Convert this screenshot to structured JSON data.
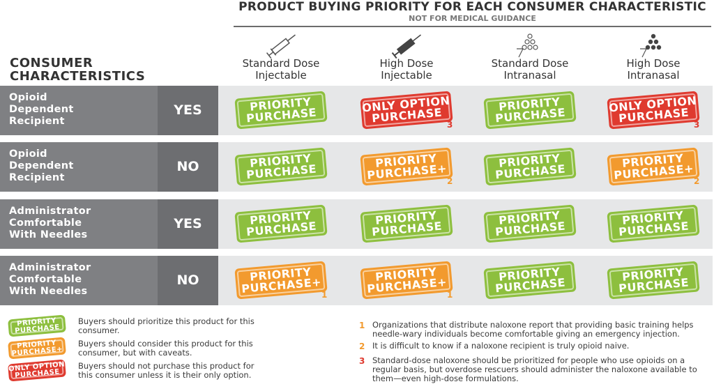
{
  "header": {
    "title": "PRODUCT BUYING PRIORITY FOR EACH CONSUMER CHARACTERISTIC",
    "subtitle": "NOT FOR MEDICAL GUIDANCE"
  },
  "table": {
    "corner": [
      "CONSUMER",
      "CHARACTERISTICS"
    ],
    "columns": [
      [
        "Standard Dose",
        "Injectable"
      ],
      [
        "High Dose",
        "Injectable"
      ],
      [
        "Standard Dose",
        "Intranasal"
      ],
      [
        "High Dose",
        "Intranasal"
      ]
    ],
    "rows": [
      {
        "label": [
          "Opioid",
          "Dependent",
          "Recipient"
        ],
        "answer": "YES",
        "cells": [
          {
            "stamp": [
              "PRIORITY",
              "PURCHASE"
            ],
            "color": "#8dbf3e"
          },
          {
            "stamp": [
              "ONLY OPTION",
              "PURCHASE"
            ],
            "color": "#df3a2f",
            "note": "3"
          },
          {
            "stamp": [
              "PRIORITY",
              "PURCHASE"
            ],
            "color": "#8dbf3e"
          },
          {
            "stamp": [
              "ONLY OPTION",
              "PURCHASE"
            ],
            "color": "#df3a2f",
            "note": "3"
          }
        ]
      },
      {
        "label": [
          "Opioid",
          "Dependent",
          "Recipient"
        ],
        "answer": "NO",
        "cells": [
          {
            "stamp": [
              "PRIORITY",
              "PURCHASE"
            ],
            "color": "#8dbf3e"
          },
          {
            "stamp": [
              "PRIORITY",
              "PURCHASE+"
            ],
            "color": "#f29a2e",
            "note": "2"
          },
          {
            "stamp": [
              "PRIORITY",
              "PURCHASE"
            ],
            "color": "#8dbf3e"
          },
          {
            "stamp": [
              "PRIORITY",
              "PURCHASE+"
            ],
            "color": "#f29a2e",
            "note": "2"
          }
        ]
      },
      {
        "label": [
          "Administrator",
          "Comfortable",
          "With Needles"
        ],
        "answer": "YES",
        "cells": [
          {
            "stamp": [
              "PRIORITY",
              "PURCHASE"
            ],
            "color": "#8dbf3e"
          },
          {
            "stamp": [
              "PRIORITY",
              "PURCHASE"
            ],
            "color": "#8dbf3e"
          },
          {
            "stamp": [
              "PRIORITY",
              "PURCHASE"
            ],
            "color": "#8dbf3e"
          },
          {
            "stamp": [
              "PRIORITY",
              "PURCHASE"
            ],
            "color": "#8dbf3e"
          }
        ]
      },
      {
        "label": [
          "Administrator",
          "Comfortable",
          "With Needles"
        ],
        "answer": "NO",
        "cells": [
          {
            "stamp": [
              "PRIORITY",
              "PURCHASE+"
            ],
            "color": "#f29a2e",
            "note": "1"
          },
          {
            "stamp": [
              "PRIORITY",
              "PURCHASE+"
            ],
            "color": "#f29a2e",
            "note": "1"
          },
          {
            "stamp": [
              "PRIORITY",
              "PURCHASE"
            ],
            "color": "#8dbf3e"
          },
          {
            "stamp": [
              "PRIORITY",
              "PURCHASE"
            ],
            "color": "#8dbf3e"
          }
        ]
      }
    ]
  },
  "legend": [
    {
      "stamp": [
        "PRIORITY",
        "PURCHASE"
      ],
      "color": "#8dbf3e",
      "text": "Buyers should prioritize this product for this consumer."
    },
    {
      "stamp": [
        "PRIORITY",
        "PURCHASE+"
      ],
      "color": "#f29a2e",
      "text": "Buyers should consider this product for this consumer, but with caveats."
    },
    {
      "stamp": [
        "ONLY OPTION",
        "PURCHASE"
      ],
      "color": "#df3a2f",
      "text": "Buyers should not purchase this product for this consumer unless it is their only option."
    }
  ],
  "footnotes": [
    {
      "number": "1",
      "color": "#f29a2e",
      "text": "Organizations that distribute naloxone report that providing basic training helps needle-wary individuals become comfortable giving an emergency injection."
    },
    {
      "number": "2",
      "color": "#f29a2e",
      "text": "It is difficult to know if a naloxone recipient is truly opioid naive."
    },
    {
      "number": "3",
      "color": "#df3a2f",
      "text": "Standard-dose naloxone should be prioritized for people who use opioids on a regular basis, but overdose rescuers should administer the naloxone available to them—even high-dose formulations."
    }
  ]
}
